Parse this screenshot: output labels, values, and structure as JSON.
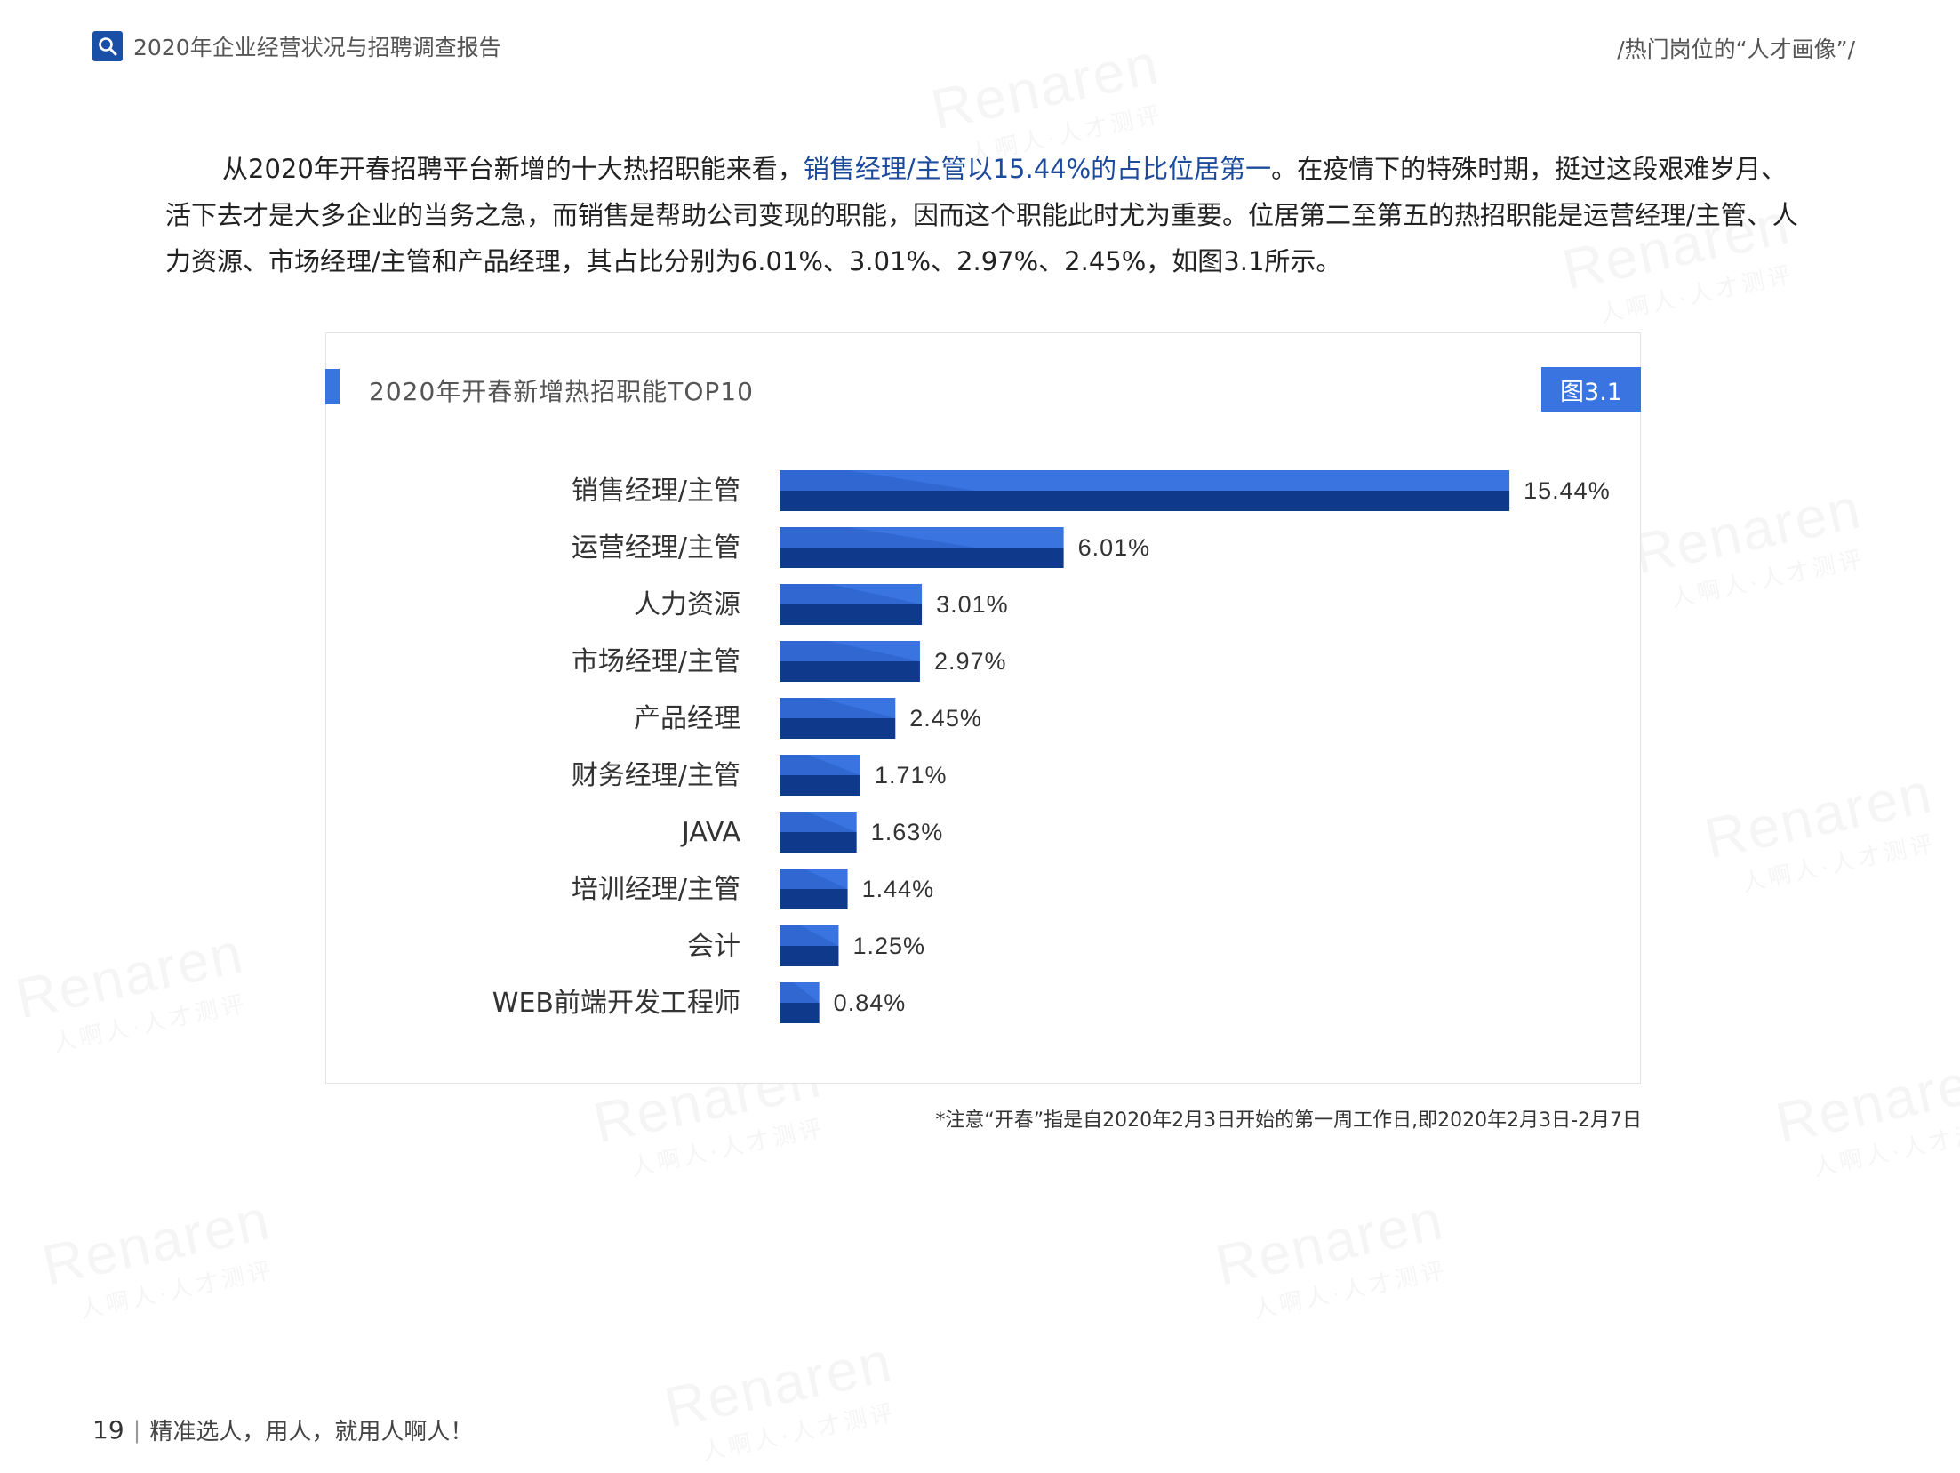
{
  "header": {
    "doc_title": "2020年企业经营状况与招聘调查报告",
    "section_title": "/热门岗位的“人才画像”/"
  },
  "intro": {
    "part1": "从2020年开春招聘平台新增的十大热招职能来看，",
    "highlight": "销售经理/主管以15.44%的占比位居第一",
    "part2": "。在疫情下的特殊时期，挺过这段艰难岁月、活下去才是大多企业的当务之急，而销售是帮助公司变现的职能，因而这个职能此时尤为重要。位居第二至第五的热招职能是运营经理/主管、人力资源、市场经理/主管和产品经理，其占比分别为6.01%、3.01%、2.97%、2.45%，如图3.1所示。"
  },
  "figure": {
    "title": "2020年开春新增热招职能TOP10",
    "label": "图3.1"
  },
  "chart_data": {
    "type": "bar",
    "orientation": "horizontal",
    "title": "2020年开春新增热招职能TOP10",
    "categories": [
      "销售经理/主管",
      "运营经理/主管",
      "人力资源",
      "市场经理/主管",
      "产品经理",
      "财务经理/主管",
      "JAVA",
      "培训经理/主管",
      "会计",
      "WEB前端开发工程师"
    ],
    "values": [
      15.44,
      6.01,
      3.01,
      2.97,
      2.45,
      1.71,
      1.63,
      1.44,
      1.25,
      0.84
    ],
    "value_labels": [
      "15.44%",
      "6.01%",
      "3.01%",
      "2.97%",
      "2.45%",
      "1.71%",
      "1.63%",
      "1.44%",
      "1.25%",
      "0.84%"
    ],
    "xlim": [
      0,
      22
    ],
    "grid": false,
    "colors": {
      "bar_top": "#3a74e0",
      "bar_bottom": "#0f3a8c",
      "bar_shade": "#2a5cc4"
    }
  },
  "footnote": "*注意“开春”指是自2020年2月3日开始的第一周工作日,即2020年2月3日-2月7日",
  "footer": {
    "page_number": "19",
    "slogan": "精准选人，用人，就用人啊人！"
  }
}
